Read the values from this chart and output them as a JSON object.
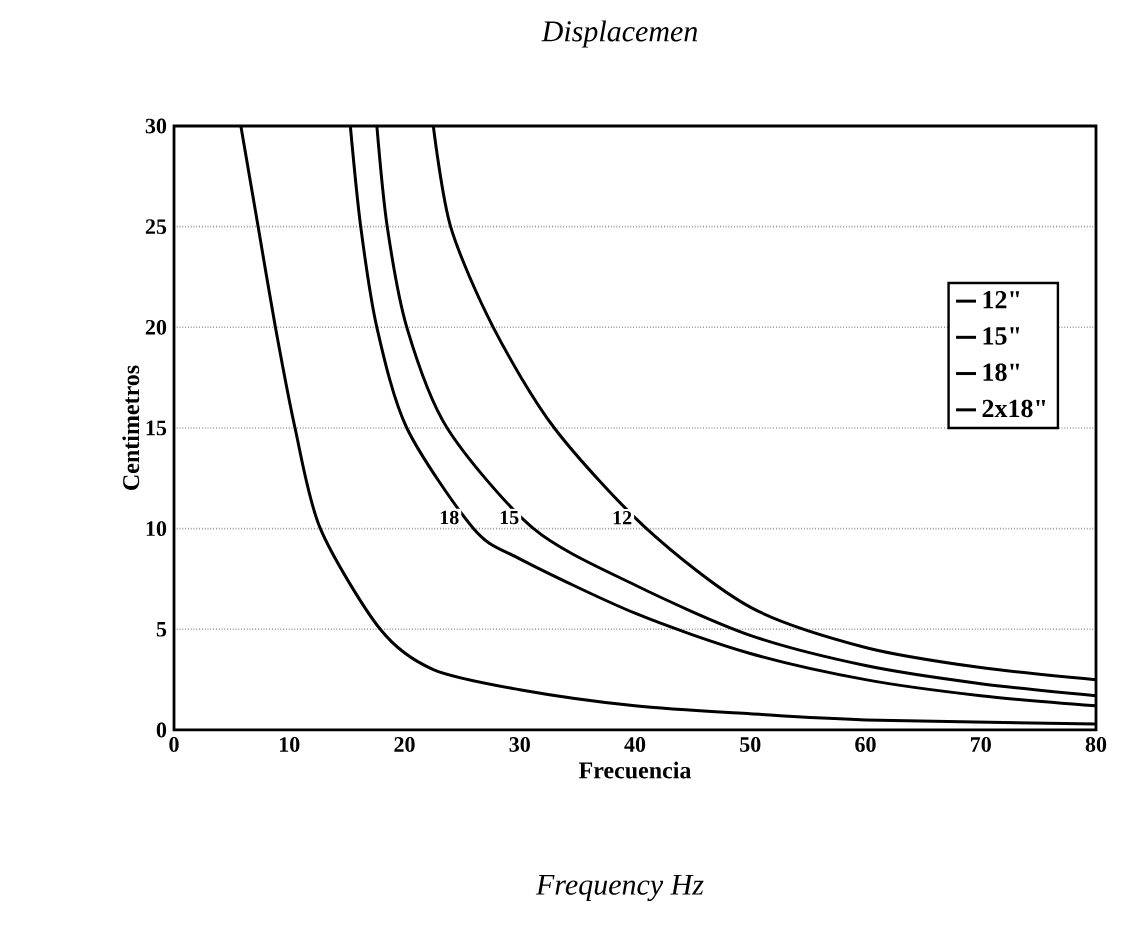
{
  "chart_data": {
    "type": "line",
    "title": "Displacemen",
    "xlabel": "Frecuencia",
    "ylabel": "Centimetros",
    "annotations": [
      "Frequency Hz",
      {
        "text": "18",
        "x": 26,
        "y": 10
      },
      {
        "text": "15",
        "x": 31.2,
        "y": 10
      },
      {
        "text": "12",
        "x": 41,
        "y": 10
      }
    ],
    "series": [
      {
        "name": "12\"",
        "color": "#000000",
        "x": [
          22.5,
          24,
          27.7,
          33,
          41,
          50,
          60,
          70,
          80
        ],
        "values": [
          30,
          25,
          20,
          15,
          10,
          6.1,
          4.1,
          3.1,
          2.5
        ]
      },
      {
        "name": "15\"",
        "color": "#000000",
        "x": [
          17.6,
          18.5,
          20.2,
          23.7,
          31.2,
          40,
          50,
          60,
          70,
          80
        ],
        "values": [
          30,
          25,
          20,
          15,
          10,
          7.2,
          4.7,
          3.2,
          2.3,
          1.7
        ]
      },
      {
        "name": "18\"",
        "color": "#000000",
        "x": [
          15.3,
          16.2,
          17.6,
          20.2,
          26,
          30,
          40,
          50,
          60,
          70,
          80
        ],
        "values": [
          30,
          25,
          20,
          15,
          10,
          8.5,
          5.8,
          3.8,
          2.5,
          1.7,
          1.2
        ]
      },
      {
        "name": "2x18\"",
        "color": "#000000",
        "x": [
          5.8,
          7.3,
          8.8,
          10.5,
          12.7,
          17.9,
          22.5,
          30,
          40,
          50,
          60,
          80
        ],
        "values": [
          30,
          25,
          20,
          15,
          10,
          5,
          3,
          2,
          1.2,
          0.8,
          0.5,
          0.3
        ]
      }
    ],
    "xlim": [
      0,
      80
    ],
    "xticks": [
      0,
      10,
      20,
      30,
      40,
      50,
      60,
      70,
      80
    ],
    "ylim": [
      0,
      30
    ],
    "yticks": [
      0,
      5,
      10,
      15,
      20,
      25,
      30
    ],
    "grid": "y",
    "legend": "right",
    "marker": "none",
    "line_style": "solid"
  }
}
